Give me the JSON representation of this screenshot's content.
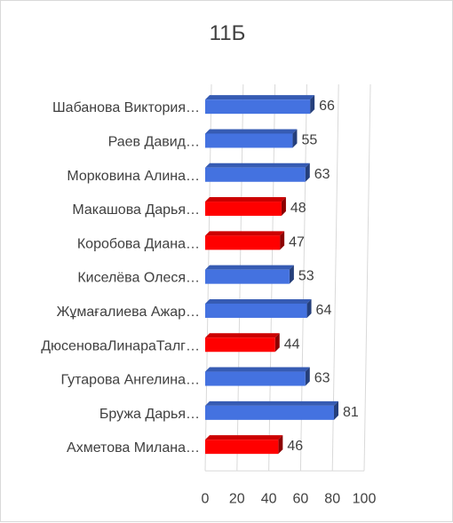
{
  "chart_data": {
    "type": "bar",
    "orientation": "horizontal",
    "title": "11Б",
    "xlabel": "",
    "ylabel": "",
    "xlim": [
      0,
      100
    ],
    "ticks": [
      "0",
      "20",
      "40",
      "60",
      "80",
      "100"
    ],
    "grid": true,
    "categories": [
      "Шабанова Виктория…",
      "Раев Давид…",
      "Морковина Алина…",
      "Макашова Дарья…",
      "Коробова Диана…",
      "Киселёва Олеся…",
      "Жұмағалиева Ажар…",
      "ДюсеноваЛинараТалг…",
      "Гутарова Ангелина…",
      "Бружа Дарья…",
      "Ахметова Милана…"
    ],
    "values": [
      66,
      55,
      63,
      48,
      47,
      53,
      64,
      44,
      63,
      81,
      46
    ],
    "value_labels": [
      "66",
      "55",
      "63",
      "48",
      "47",
      "53",
      "64",
      "44",
      "63",
      "81",
      "46"
    ],
    "bar_colors": [
      "#4472e0",
      "#4472e0",
      "#4472e0",
      "#ff0000",
      "#ff0000",
      "#4472e0",
      "#4472e0",
      "#ff0000",
      "#4472e0",
      "#4472e0",
      "#ff0000"
    ]
  }
}
